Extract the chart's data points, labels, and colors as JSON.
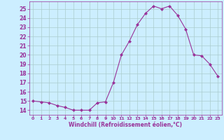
{
  "x": [
    0,
    1,
    2,
    3,
    4,
    5,
    6,
    7,
    8,
    9,
    10,
    11,
    12,
    13,
    14,
    15,
    16,
    17,
    18,
    19,
    20,
    21,
    22,
    23
  ],
  "y": [
    15,
    14.9,
    14.8,
    14.5,
    14.3,
    14.0,
    14.0,
    14.0,
    14.8,
    14.9,
    17.0,
    20.0,
    21.5,
    23.3,
    24.5,
    25.3,
    25.0,
    25.3,
    24.3,
    22.8,
    20.0,
    19.9,
    19.0,
    17.7
  ],
  "line_color": "#993399",
  "marker_color": "#993399",
  "bg_color": "#cceeff",
  "grid_color": "#aacccc",
  "xlabel": "Windchill (Refroidissement éolien,°C)",
  "xlabel_color": "#993399",
  "tick_color": "#993399",
  "ylim": [
    13.5,
    25.8
  ],
  "xlim": [
    -0.5,
    23.5
  ],
  "yticks": [
    14,
    15,
    16,
    17,
    18,
    19,
    20,
    21,
    22,
    23,
    24,
    25
  ],
  "xticks": [
    0,
    1,
    2,
    3,
    4,
    5,
    6,
    7,
    8,
    9,
    10,
    11,
    12,
    13,
    14,
    15,
    16,
    17,
    18,
    19,
    20,
    21,
    22,
    23
  ]
}
